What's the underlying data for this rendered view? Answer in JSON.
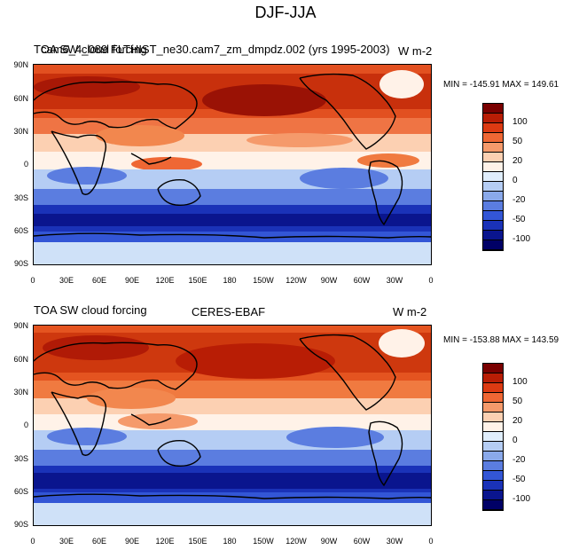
{
  "figure_title": "DJF-JJA",
  "panels": [
    {
      "left_title": "TOA SW cloud forcing",
      "overlap_title": "cam6_4_089 FLTHIST_ne30.cam7_zm_dmpdz.002 (yrs 1995-2003)",
      "units": "W m-2",
      "minmax": "MIN = -145.91  MAX = 149.61"
    },
    {
      "left_title": "TOA SW cloud forcing",
      "center_title": "CERES-EBAF",
      "units": "W m-2",
      "minmax": "MIN = -153.88  MAX = 143.59"
    }
  ],
  "lat_ticks": [
    "90N",
    "60N",
    "30N",
    "0",
    "30S",
    "60S",
    "90S"
  ],
  "lon_ticks": [
    "0",
    "30E",
    "60E",
    "90E",
    "120E",
    "150E",
    "180",
    "150W",
    "120W",
    "90W",
    "60W",
    "30W",
    "0"
  ],
  "colorbar": {
    "labels": [
      "100",
      "50",
      "20",
      "0",
      "-20",
      "-50",
      "-100"
    ],
    "colors": [
      "#7a0000",
      "#b81d05",
      "#dc3a12",
      "#ef6734",
      "#f59a6b",
      "#fcd0b2",
      "#fff2e8",
      "#e0eefc",
      "#b5cdf4",
      "#8aa9ea",
      "#5b7de0",
      "#3356d6",
      "#1a32b8",
      "#0a158e",
      "#000066"
    ]
  }
}
